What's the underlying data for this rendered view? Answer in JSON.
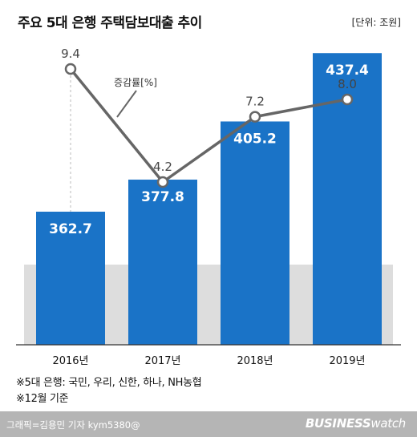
{
  "header": {
    "title": "주요 5대 은행 주택담보대출 추이",
    "unit": "[단위: 조원]"
  },
  "chart_data": {
    "type": "bar",
    "categories": [
      "2016년",
      "2017년",
      "2018년",
      "2019년"
    ],
    "series": [
      {
        "values": [
          362.7,
          377.8,
          405.2,
          437.4
        ]
      }
    ],
    "line_series": {
      "name": "증감률[%]",
      "values": [
        9.4,
        4.2,
        7.2,
        8.0
      ]
    },
    "title": "주요 5대 은행 주택담보대출 추이",
    "ylabel": "",
    "xlabel": "",
    "colors": {
      "bar": "#1a73c7",
      "line": "#666666",
      "baseline_band": "#dddddd",
      "marker_fill": "#ffffff"
    }
  },
  "notes": [
    "※5대 은행: 국민, 우리, 신한, 하나, NH농협",
    "※12월 기준"
  ],
  "footer": {
    "credit": "그래픽=김용민 기자 kym5380@",
    "brand_bold": "BUSINESS",
    "brand_light": "watch",
    "background": "#b5b5b5"
  }
}
